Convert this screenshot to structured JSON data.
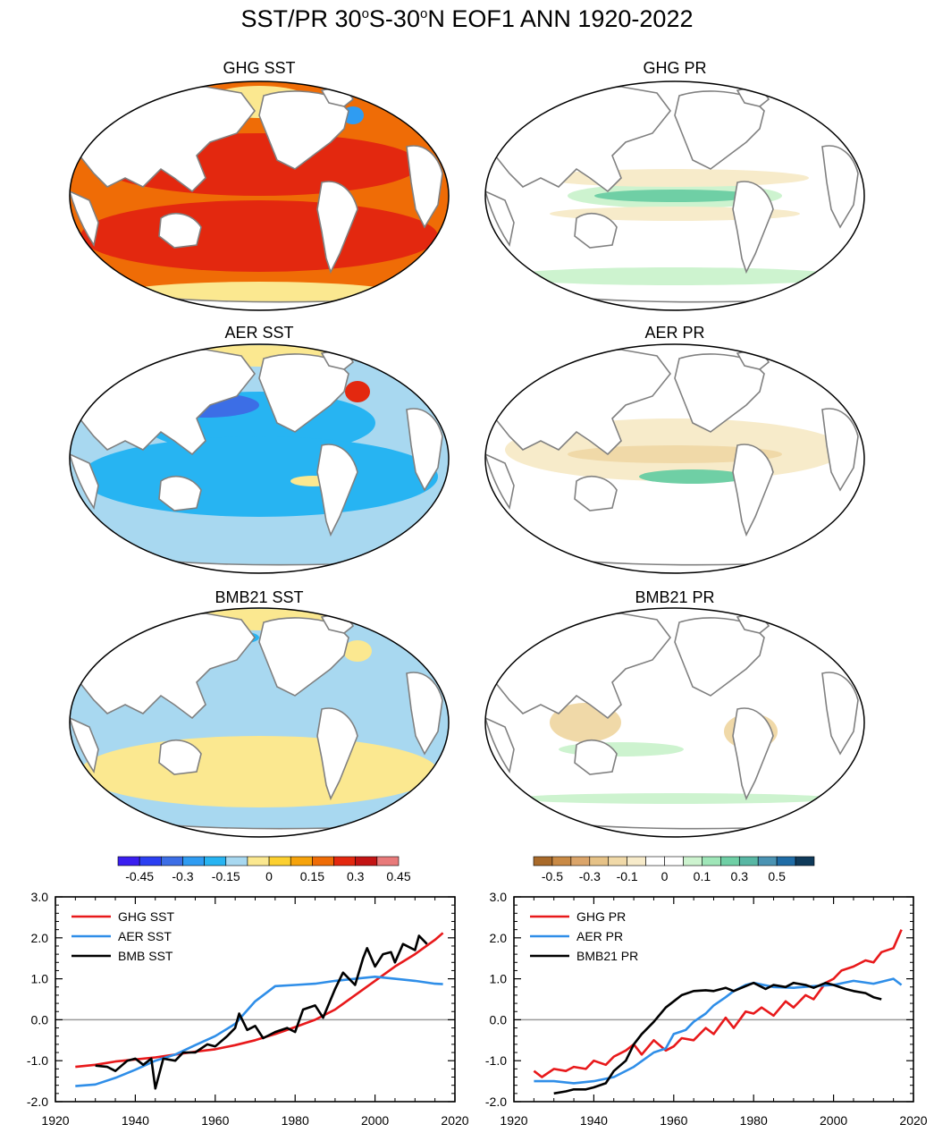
{
  "figure": {
    "title_main": "SST/PR 30",
    "title_sup1": "o",
    "title_mid": "S-30",
    "title_sup2": "o",
    "title_end": "N EOF1 ANN 1920-2022"
  },
  "maps": [
    {
      "title": "GHG SST",
      "kind": "sst",
      "pattern": "ghg"
    },
    {
      "title": "GHG PR",
      "kind": "pr",
      "pattern": "ghg"
    },
    {
      "title": "AER SST",
      "kind": "sst",
      "pattern": "aer"
    },
    {
      "title": "AER PR",
      "kind": "pr",
      "pattern": "aer"
    },
    {
      "title": "BMB21 SST",
      "kind": "sst",
      "pattern": "bmb"
    },
    {
      "title": "BMB21 PR",
      "kind": "pr",
      "pattern": "bmb"
    }
  ],
  "colorbars": {
    "sst": {
      "colors": [
        "#3a1ef0",
        "#2b3ff2",
        "#3c6ee6",
        "#2f9cf2",
        "#27b4f2",
        "#a8d8f0",
        "#fbe890",
        "#fcd030",
        "#f6a30b",
        "#ef6c06",
        "#e3280f",
        "#c31414",
        "#e87a7a"
      ],
      "labels": [
        "-0.45",
        "-0.3",
        "-0.15",
        "0",
        "0.15",
        "0.3",
        "0.45"
      ]
    },
    "pr": {
      "colors": [
        "#a96a2a",
        "#c98a45",
        "#dba56a",
        "#e6c287",
        "#f0d9a8",
        "#f7ebca",
        "#ffffff",
        "#ffffff",
        "#cdf3cf",
        "#9fe6b8",
        "#6fcfa5",
        "#58b7a4",
        "#4a93b3",
        "#1f6ca6",
        "#0f3a5a"
      ],
      "labels": [
        "-0.5",
        "-0.3",
        "-0.1",
        "0",
        "0.1",
        "0.3",
        "0.5"
      ]
    }
  },
  "chart_data": [
    {
      "type": "line",
      "xlim": [
        1920,
        2020
      ],
      "ylim": [
        -2.0,
        3.0
      ],
      "x_ticks": [
        "1920",
        "1940",
        "1960",
        "1980",
        "2000",
        "2020"
      ],
      "y_ticks": [
        "-2.0",
        "-1.0",
        "0.0",
        "1.0",
        "2.0",
        "3.0"
      ],
      "grid": false,
      "zero_line": true,
      "legend_position": "top-left",
      "series": [
        {
          "name": "GHG SST",
          "color": "#e8191b",
          "x": [
            1925,
            1930,
            1935,
            1940,
            1945,
            1950,
            1955,
            1960,
            1965,
            1970,
            1975,
            1980,
            1985,
            1990,
            1995,
            2000,
            2005,
            2010,
            2015,
            2017
          ],
          "y": [
            -1.15,
            -1.1,
            -1.02,
            -0.97,
            -0.92,
            -0.85,
            -0.78,
            -0.72,
            -0.62,
            -0.5,
            -0.35,
            -0.18,
            0.0,
            0.25,
            0.6,
            0.95,
            1.3,
            1.6,
            1.95,
            2.12
          ]
        },
        {
          "name": "AER SST",
          "color": "#2f8ee8",
          "x": [
            1925,
            1930,
            1935,
            1940,
            1945,
            1950,
            1955,
            1960,
            1965,
            1970,
            1975,
            1980,
            1985,
            1990,
            1995,
            2000,
            2005,
            2010,
            2015,
            2017
          ],
          "y": [
            -1.62,
            -1.58,
            -1.42,
            -1.22,
            -1.0,
            -0.85,
            -0.62,
            -0.4,
            -0.1,
            0.45,
            0.82,
            0.85,
            0.88,
            0.95,
            1.0,
            1.05,
            1.0,
            0.95,
            0.88,
            0.87
          ]
        },
        {
          "name": "BMB SST",
          "color": "#000000",
          "x": [
            1930,
            1933,
            1935,
            1938,
            1940,
            1942,
            1944,
            1945,
            1947,
            1950,
            1952,
            1955,
            1958,
            1960,
            1963,
            1965,
            1966,
            1968,
            1970,
            1972,
            1975,
            1978,
            1980,
            1982,
            1985,
            1987,
            1990,
            1992,
            1995,
            1997,
            1998,
            2000,
            2002,
            2004,
            2005,
            2007,
            2010,
            2011,
            2013
          ],
          "y": [
            -1.12,
            -1.15,
            -1.25,
            -1.0,
            -0.95,
            -1.1,
            -0.95,
            -1.68,
            -0.95,
            -1.0,
            -0.8,
            -0.8,
            -0.6,
            -0.65,
            -0.4,
            -0.2,
            0.15,
            -0.25,
            -0.15,
            -0.45,
            -0.3,
            -0.2,
            -0.3,
            0.25,
            0.35,
            0.05,
            0.75,
            1.15,
            0.85,
            1.5,
            1.75,
            1.3,
            1.6,
            1.65,
            1.4,
            1.85,
            1.7,
            2.05,
            1.85
          ]
        }
      ]
    },
    {
      "type": "line",
      "xlim": [
        1920,
        2020
      ],
      "ylim": [
        -2.0,
        3.0
      ],
      "x_ticks": [
        "1920",
        "1940",
        "1960",
        "1980",
        "2000",
        "2020"
      ],
      "y_ticks": [
        "-2.0",
        "-1.0",
        "0.0",
        "1.0",
        "2.0",
        "3.0"
      ],
      "grid": false,
      "zero_line": true,
      "legend_position": "top-left",
      "series": [
        {
          "name": "GHG PR",
          "color": "#e8191b",
          "x": [
            1925,
            1927,
            1930,
            1933,
            1935,
            1938,
            1940,
            1943,
            1945,
            1948,
            1950,
            1952,
            1955,
            1958,
            1960,
            1962,
            1965,
            1968,
            1970,
            1973,
            1975,
            1978,
            1980,
            1982,
            1985,
            1988,
            1990,
            1993,
            1995,
            1998,
            2000,
            2002,
            2005,
            2008,
            2010,
            2012,
            2015,
            2017
          ],
          "y": [
            -1.25,
            -1.4,
            -1.2,
            -1.25,
            -1.15,
            -1.2,
            -1.0,
            -1.1,
            -0.9,
            -0.75,
            -0.6,
            -0.85,
            -0.5,
            -0.75,
            -0.65,
            -0.45,
            -0.5,
            -0.2,
            -0.35,
            0.05,
            -0.2,
            0.2,
            0.15,
            0.3,
            0.1,
            0.45,
            0.3,
            0.6,
            0.5,
            0.9,
            1.0,
            1.2,
            1.3,
            1.45,
            1.4,
            1.65,
            1.75,
            2.2
          ]
        },
        {
          "name": "AER PR",
          "color": "#2f8ee8",
          "x": [
            1925,
            1930,
            1935,
            1940,
            1945,
            1950,
            1955,
            1958,
            1960,
            1963,
            1965,
            1968,
            1970,
            1973,
            1975,
            1978,
            1980,
            1985,
            1990,
            1995,
            2000,
            2005,
            2010,
            2015,
            2017
          ],
          "y": [
            -1.5,
            -1.5,
            -1.55,
            -1.5,
            -1.4,
            -1.15,
            -0.8,
            -0.7,
            -0.35,
            -0.25,
            -0.05,
            0.15,
            0.35,
            0.55,
            0.7,
            0.85,
            0.9,
            0.8,
            0.78,
            0.82,
            0.85,
            0.95,
            0.88,
            1.0,
            0.85
          ]
        },
        {
          "name": "BMB21 PR",
          "color": "#000000",
          "x": [
            1930,
            1933,
            1935,
            1938,
            1940,
            1943,
            1945,
            1948,
            1950,
            1952,
            1955,
            1958,
            1960,
            1962,
            1965,
            1968,
            1970,
            1973,
            1975,
            1978,
            1980,
            1983,
            1985,
            1988,
            1990,
            1993,
            1995,
            1998,
            2000,
            2003,
            2005,
            2008,
            2010,
            2012
          ],
          "y": [
            -1.8,
            -1.75,
            -1.7,
            -1.7,
            -1.65,
            -1.55,
            -1.25,
            -1.0,
            -0.6,
            -0.35,
            -0.05,
            0.3,
            0.45,
            0.6,
            0.7,
            0.72,
            0.7,
            0.78,
            0.7,
            0.82,
            0.9,
            0.75,
            0.85,
            0.8,
            0.9,
            0.85,
            0.78,
            0.9,
            0.85,
            0.75,
            0.7,
            0.65,
            0.55,
            0.5
          ]
        }
      ]
    }
  ]
}
